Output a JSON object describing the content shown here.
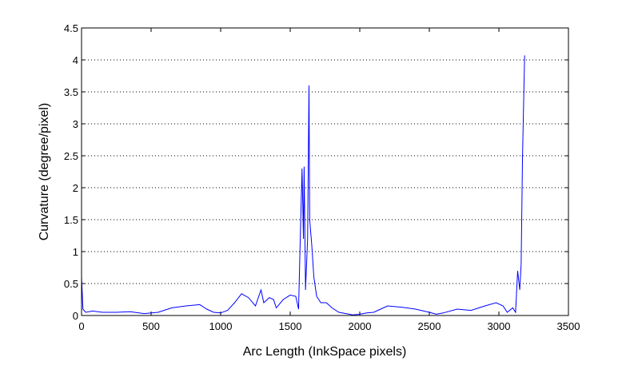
{
  "chart_data": {
    "type": "line",
    "x_label": "Arc Length (InkSpace pixels)",
    "y_label": "Curvature (degree/pixel)",
    "xlim": [
      0,
      3500
    ],
    "xticks": [
      0,
      500,
      1000,
      1500,
      2000,
      2500,
      3000,
      3500
    ],
    "ylim": [
      0,
      4.5
    ],
    "yticks": [
      0,
      0.5,
      1,
      1.5,
      2,
      2.5,
      3,
      3.5,
      4,
      4.5
    ],
    "grid": "y",
    "series": [
      {
        "color": "#0000ff",
        "x": [
          0,
          10,
          30,
          80,
          150,
          250,
          350,
          450,
          550,
          650,
          750,
          850,
          900,
          950,
          1000,
          1050,
          1100,
          1150,
          1200,
          1250,
          1290,
          1310,
          1350,
          1380,
          1400,
          1450,
          1500,
          1540,
          1560,
          1570,
          1585,
          1595,
          1600,
          1610,
          1625,
          1635,
          1640,
          1655,
          1670,
          1690,
          1720,
          1760,
          1800,
          1850,
          1900,
          1950,
          2000,
          2050,
          2100,
          2150,
          2200,
          2300,
          2400,
          2500,
          2550,
          2600,
          2700,
          2800,
          2900,
          2980,
          3030,
          3060,
          3100,
          3120,
          3135,
          3150,
          3160,
          3170,
          3185
        ],
        "values": [
          0.6,
          0.1,
          0.05,
          0.07,
          0.05,
          0.05,
          0.06,
          0.03,
          0.05,
          0.12,
          0.15,
          0.17,
          0.1,
          0.05,
          0.04,
          0.08,
          0.2,
          0.34,
          0.28,
          0.15,
          0.4,
          0.2,
          0.28,
          0.25,
          0.12,
          0.25,
          0.32,
          0.3,
          0.1,
          1.0,
          2.3,
          1.2,
          2.33,
          0.4,
          1.2,
          3.6,
          1.5,
          1.1,
          0.6,
          0.3,
          0.2,
          0.2,
          0.12,
          0.05,
          0.03,
          0.01,
          0.02,
          0.04,
          0.05,
          0.1,
          0.15,
          0.13,
          0.1,
          0.05,
          0.02,
          0.04,
          0.1,
          0.08,
          0.15,
          0.2,
          0.15,
          0.05,
          0.12,
          0.05,
          0.7,
          0.4,
          0.8,
          2.5,
          4.07
        ]
      }
    ]
  }
}
